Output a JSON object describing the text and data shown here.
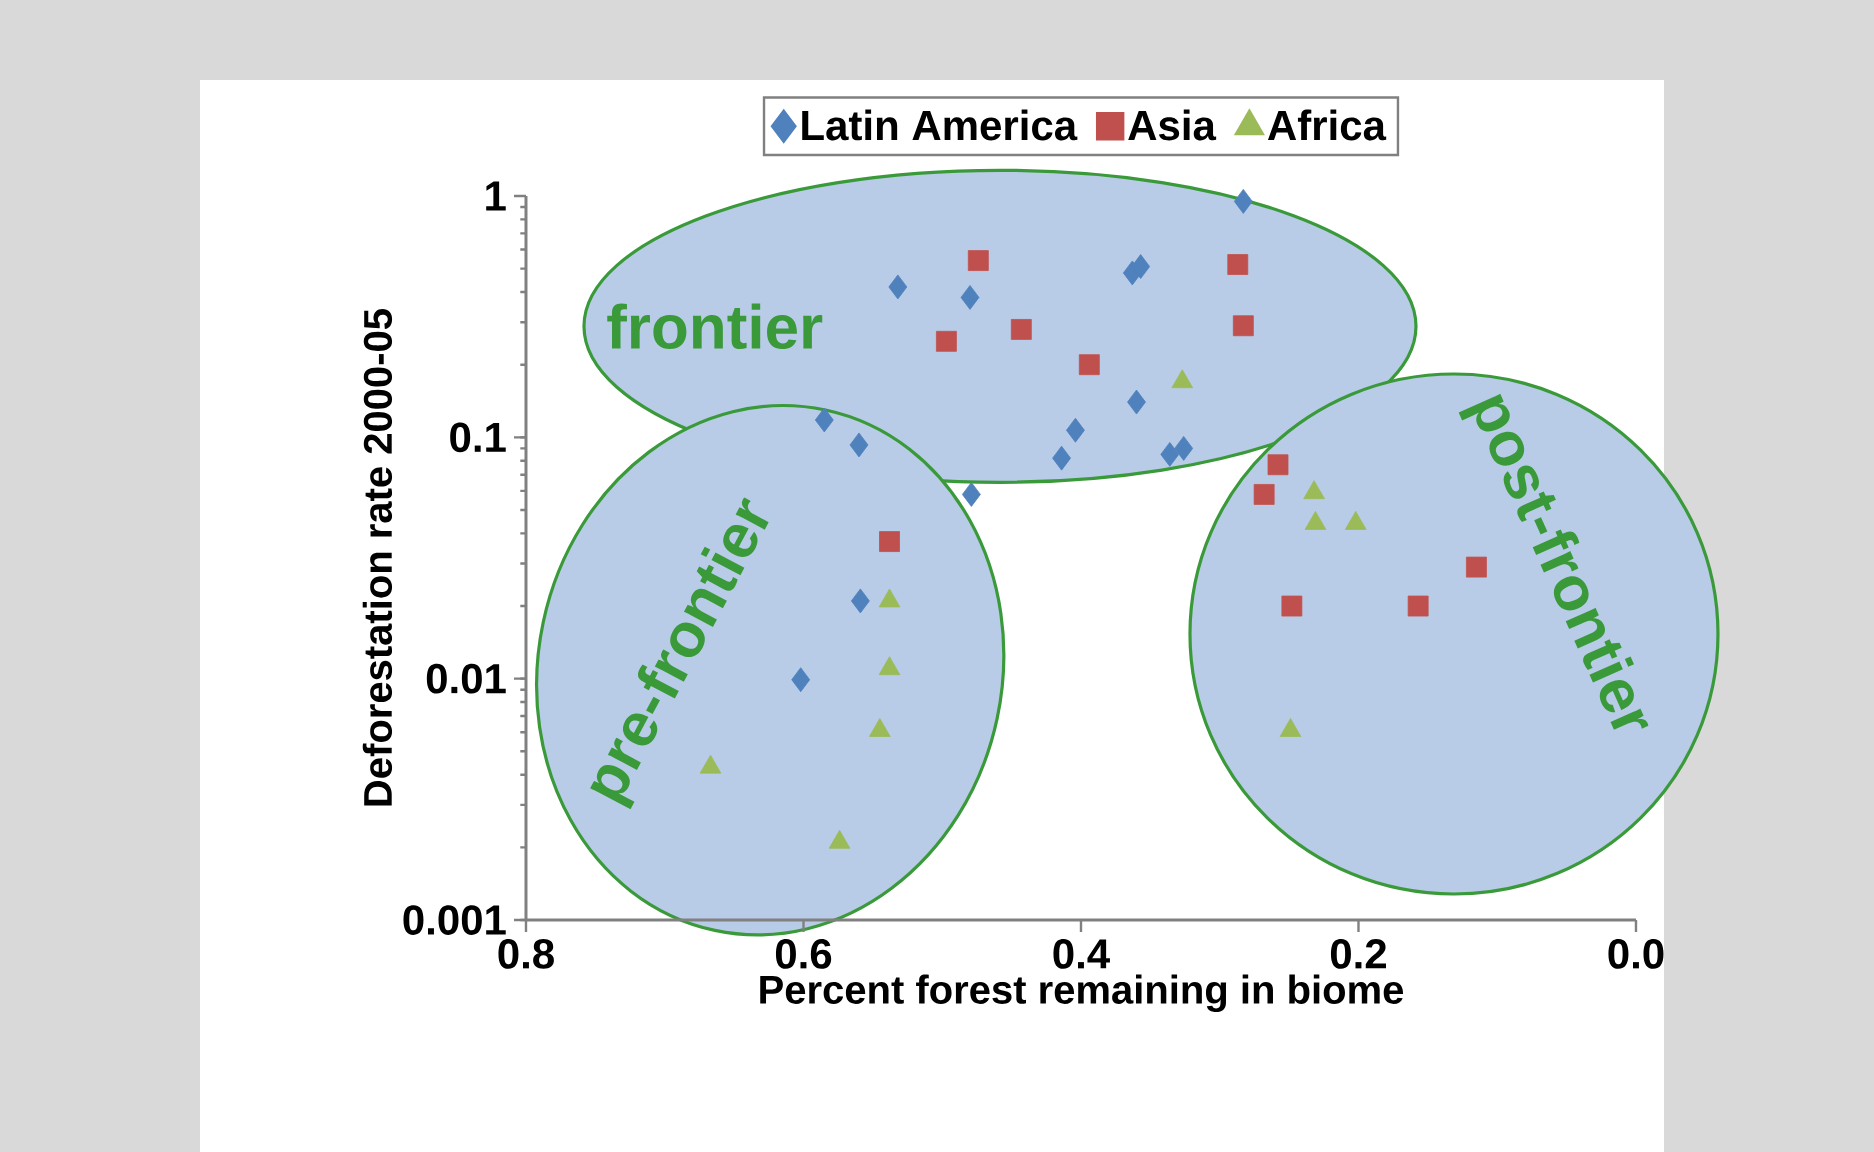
{
  "chart_data": {
    "type": "scatter",
    "xlabel": "Percent forest remaining in biome",
    "ylabel": "Deforestation rate 2000-05",
    "log": "y",
    "legend": "top",
    "xlim": [
      0.8,
      0.0
    ],
    "ylim": [
      0.001,
      1
    ],
    "xticks": [
      0.8,
      0.6,
      0.4,
      0.2,
      {
        "value": 0,
        "label": "0.0"
      }
    ],
    "yticks": [
      0.001,
      0.01,
      0.1,
      1
    ],
    "annotations": [
      "frontier",
      "pre-frontier",
      "post-frontier"
    ],
    "series": [
      {
        "name": "Latin America",
        "color": "#4f81bd",
        "marker": "diamond",
        "x": [
          0.283,
          0.532,
          0.48,
          0.363,
          0.357,
          0.36,
          0.585,
          0.56,
          0.479,
          0.404,
          0.414,
          0.336,
          0.326,
          0.559,
          0.602
        ],
        "values": [
          0.95,
          0.42,
          0.38,
          0.48,
          0.51,
          0.14,
          0.118,
          0.093,
          0.058,
          0.107,
          0.082,
          0.085,
          0.09,
          0.021,
          0.0099
        ]
      },
      {
        "name": "Asia",
        "color": "#c0504d",
        "marker": "square",
        "x": [
          0.474,
          0.497,
          0.443,
          0.394,
          0.287,
          0.283,
          0.538,
          0.258,
          0.268,
          0.248,
          0.157,
          0.115
        ],
        "values": [
          0.54,
          0.25,
          0.28,
          0.2,
          0.52,
          0.29,
          0.037,
          0.077,
          0.058,
          0.02,
          0.02,
          0.029
        ]
      },
      {
        "name": "Africa",
        "color": "#9bbb59",
        "marker": "triangle",
        "x": [
          0.327,
          0.232,
          0.231,
          0.202,
          0.249,
          0.538,
          0.538,
          0.545,
          0.667,
          0.574
        ],
        "values": [
          0.17,
          0.059,
          0.044,
          0.044,
          0.0061,
          0.021,
          0.011,
          0.0061,
          0.0043,
          0.0021
        ]
      }
    ]
  }
}
